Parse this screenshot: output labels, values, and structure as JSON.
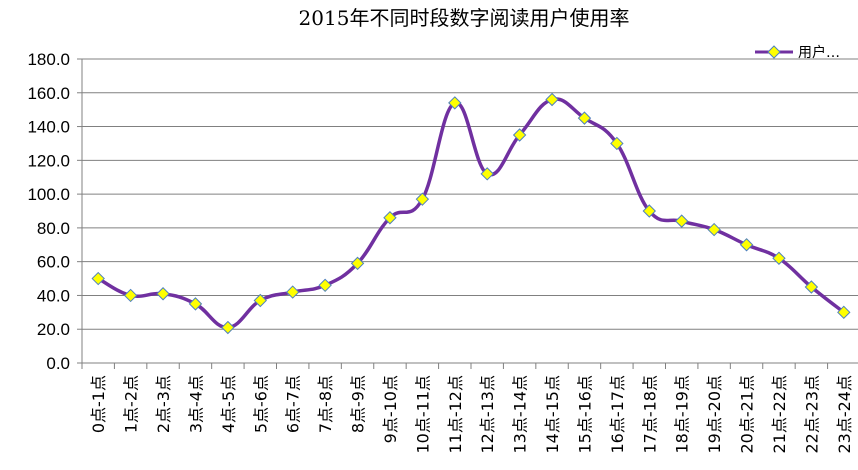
{
  "chart_data": {
    "type": "line",
    "title": "2015年不同时段数字阅读用户使用率",
    "categories": [
      "0点-1点",
      "1点-2点",
      "2点-3点",
      "3点-4点",
      "4点-5点",
      "5点-6点",
      "6点-7点",
      "7点-8点",
      "8点-9点",
      "9点-10点",
      "10点-11点",
      "11点-12点",
      "12点-13点",
      "13点-14点",
      "14点-15点",
      "15点-16点",
      "16点-17点",
      "17点-18点",
      "18点-19点",
      "19点-20点",
      "20点-21点",
      "21点-22点",
      "22点-23点",
      "23点-24点"
    ],
    "series": [
      {
        "name": "用户…",
        "values": [
          50,
          40,
          41,
          35,
          21,
          37,
          42,
          46,
          59,
          86,
          97,
          154,
          112,
          135,
          156,
          145,
          130,
          90,
          84,
          79,
          70,
          62,
          45,
          30
        ]
      }
    ],
    "y_tick_labels": [
      "0.0",
      "20.0",
      "40.0",
      "60.0",
      "80.0",
      "100.0",
      "120.0",
      "140.0",
      "160.0",
      "180.0"
    ],
    "ylim": [
      0,
      180
    ],
    "grid": true,
    "legend_position": "top-right",
    "colors": {
      "line": "#7030A0",
      "marker_fill": "#FFFF00",
      "marker_edge": "#4F81BD",
      "grid": "#808080"
    }
  }
}
